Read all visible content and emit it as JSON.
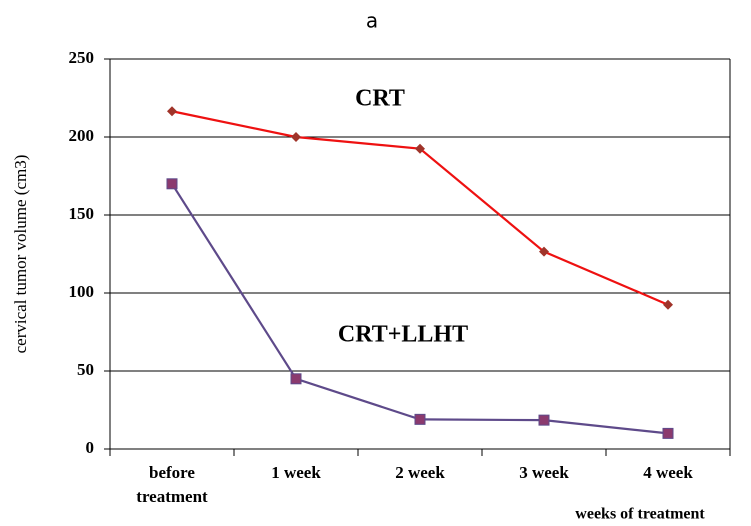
{
  "chart_data": {
    "type": "line",
    "title": "a",
    "y_label": "cervical tumor volume (cm3)",
    "x_label": "weeks of treatment",
    "categories": [
      "before treatment",
      "1 week",
      "2 week",
      "3 week",
      "4 week"
    ],
    "series": [
      {
        "name": "CRT",
        "color": "#ee1111",
        "marker_color": "#a0342a",
        "marker": "diamond",
        "values": [
          216.5,
          200,
          192.5,
          126.5,
          92.5
        ]
      },
      {
        "name": "CRT+LLHT",
        "color": "#5e4a8a",
        "marker_color": "#8b3a6e",
        "marker": "square",
        "values": [
          170,
          45,
          19,
          18.5,
          10
        ]
      }
    ],
    "ylim": [
      0,
      250
    ],
    "yticks": [
      0,
      50,
      100,
      150,
      200,
      250
    ],
    "grid": true
  }
}
